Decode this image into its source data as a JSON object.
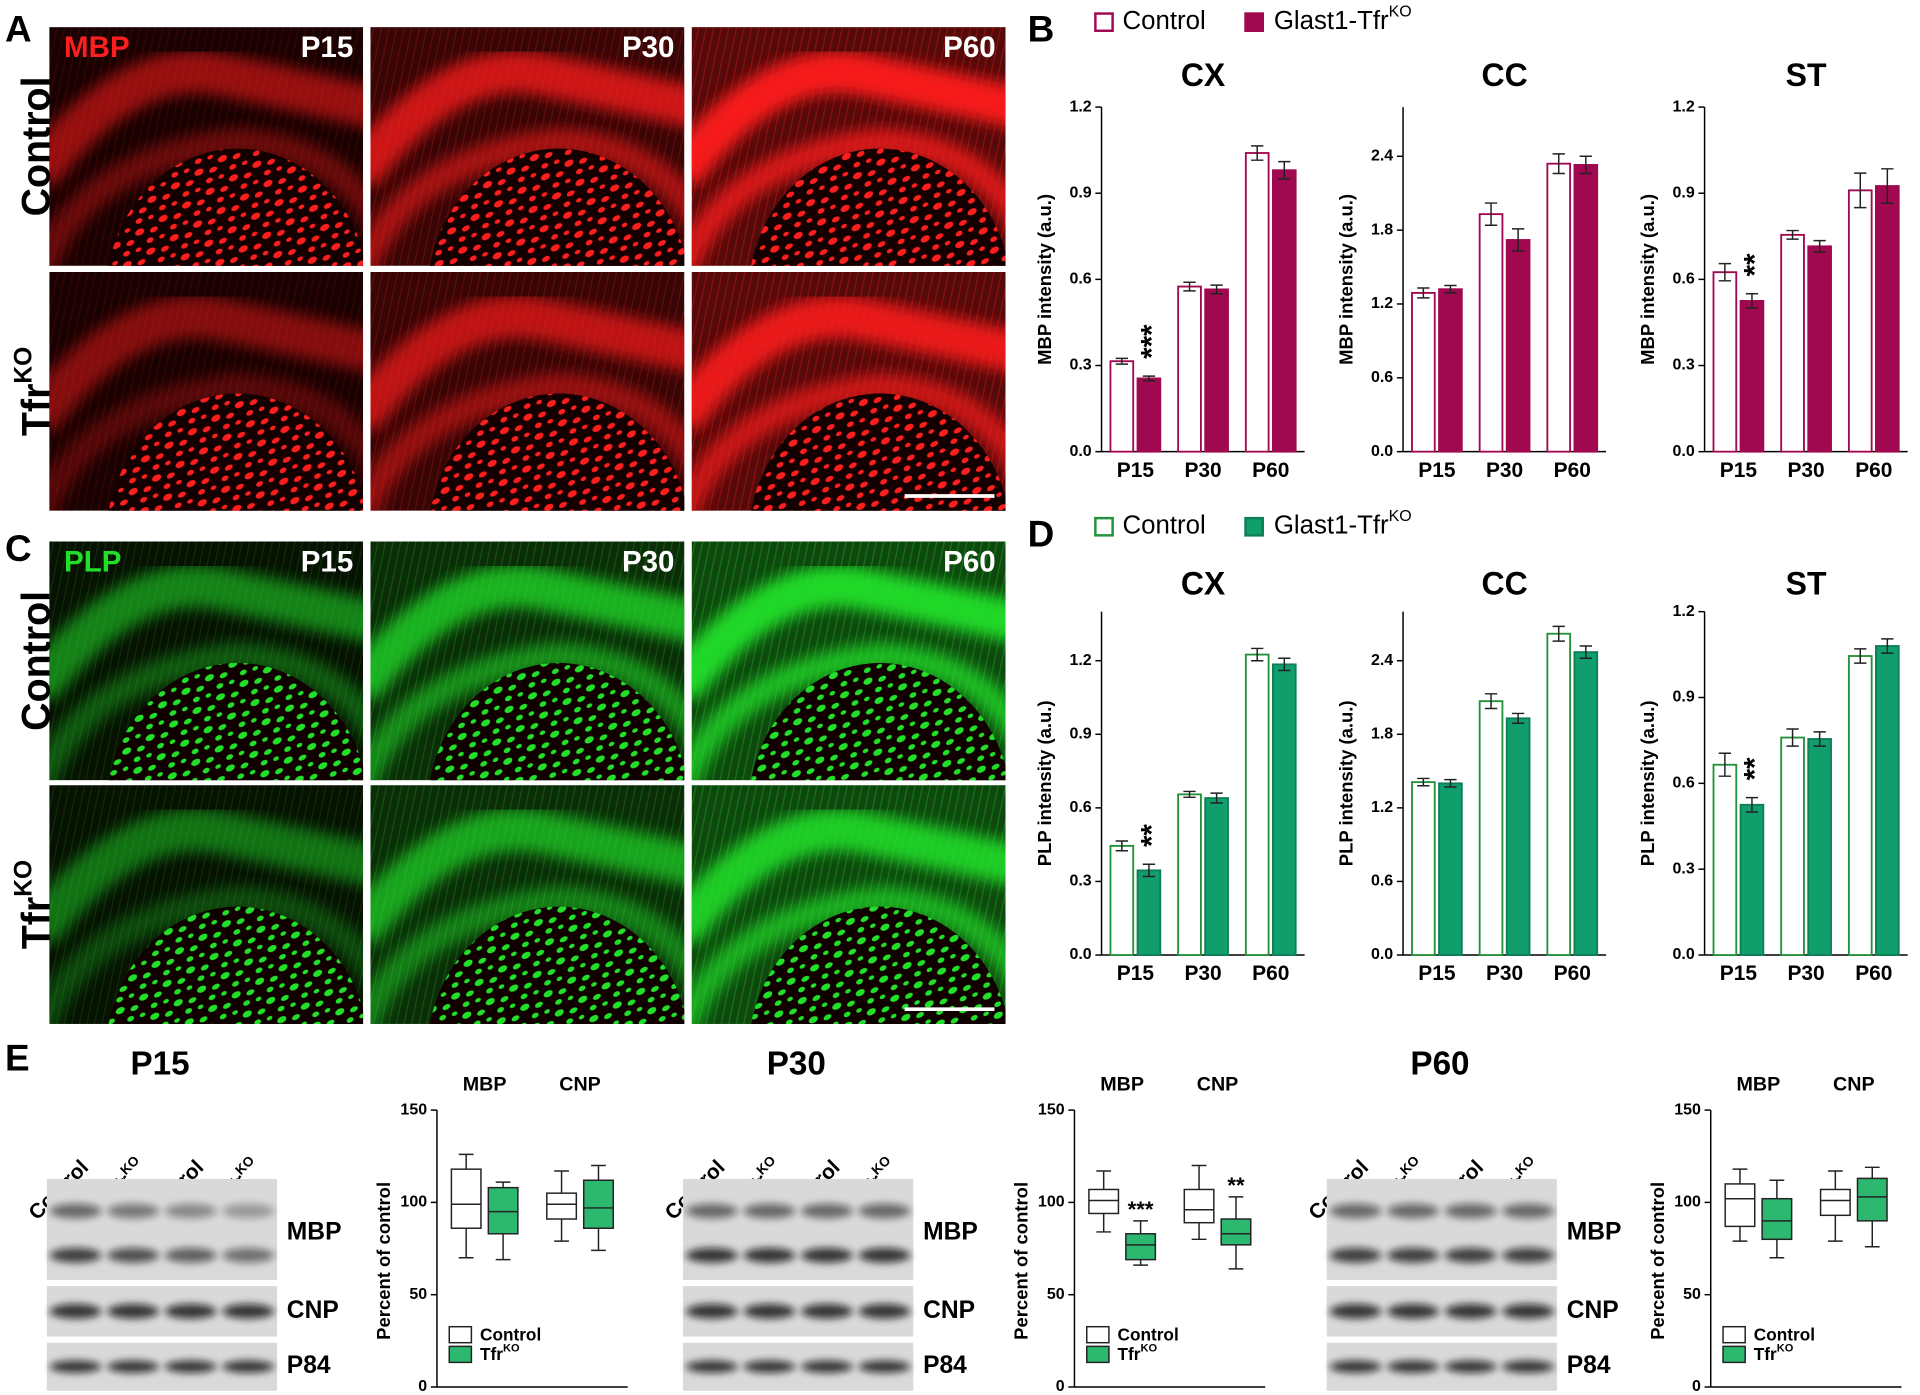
{
  "panel_labels": [
    "A",
    "B",
    "C",
    "D",
    "E"
  ],
  "micrographs": [
    {
      "stain": "MBP",
      "stain_color": "#ff1e1e",
      "ages": [
        "P15",
        "P30",
        "P60"
      ],
      "rows": [
        {
          "label": "Control"
        },
        {
          "label": "Tfr",
          "sup": "KO"
        }
      ]
    },
    {
      "stain": "PLP",
      "stain_color": "#22e02a",
      "ages": [
        "P15",
        "P30",
        "P60"
      ],
      "rows": [
        {
          "label": "Control"
        },
        {
          "label": "Tfr",
          "sup": "KO"
        }
      ]
    }
  ],
  "blots": [
    {
      "title": "P15",
      "lanes": [
        {
          "label": "Control"
        },
        {
          "label": "Tfr",
          "sup": "KO"
        },
        {
          "label": "Control"
        },
        {
          "label": "Tfr",
          "sup": "KO"
        }
      ],
      "bands": [
        "MBP",
        "CNP",
        "P84"
      ]
    },
    {
      "title": "P30",
      "lanes": [
        {
          "label": "Control"
        },
        {
          "label": "Tfr",
          "sup": "KO"
        },
        {
          "label": "Control"
        },
        {
          "label": "Tfr",
          "sup": "KO"
        }
      ],
      "bands": [
        "MBP",
        "CNP",
        "P84"
      ]
    },
    {
      "title": "P60",
      "lanes": [
        {
          "label": "Control"
        },
        {
          "label": "Tfr",
          "sup": "KO"
        },
        {
          "label": "Control"
        },
        {
          "label": "Tfr",
          "sup": "KO"
        }
      ],
      "bands": [
        "MBP",
        "CNP",
        "P84"
      ]
    }
  ],
  "chart_data": [
    {
      "type": "bar",
      "title": "CX",
      "ylabel": "MBP intensity (a.u.)",
      "categories": [
        "P15",
        "P30",
        "P60"
      ],
      "series": [
        {
          "name": "Control",
          "color": "#a0084f",
          "fill": "#ffffff",
          "values": [
            0.315,
            0.575,
            1.04
          ],
          "errors": [
            0.01,
            0.015,
            0.025
          ]
        },
        {
          "name": "Glast1-Tfr",
          "name_sup": "KO",
          "color": "#a0084f",
          "fill": "#a0084f",
          "values": [
            0.255,
            0.565,
            0.98
          ],
          "errors": [
            0.008,
            0.015,
            0.03
          ],
          "annotations": [
            "***",
            null,
            null
          ]
        }
      ],
      "ylim": [
        0,
        1.2
      ],
      "yticks": [
        {
          "value": 0,
          "label": "0.0"
        },
        {
          "value": 0.3,
          "label": "0.3"
        },
        {
          "value": 0.6,
          "label": "0.6"
        },
        {
          "value": 0.9,
          "label": "0.9"
        },
        {
          "value": 1.2,
          "label": "1.2"
        }
      ]
    },
    {
      "type": "bar",
      "title": "CC",
      "ylabel": "MBP intensity (a.u.)",
      "categories": [
        "P15",
        "P30",
        "P60"
      ],
      "series": [
        {
          "color": "#a0084f",
          "fill": "#ffffff",
          "values": [
            1.29,
            1.93,
            2.34
          ],
          "errors": [
            0.04,
            0.09,
            0.08
          ]
        },
        {
          "color": "#a0084f",
          "fill": "#a0084f",
          "values": [
            1.32,
            1.72,
            2.33
          ],
          "errors": [
            0.03,
            0.09,
            0.07
          ]
        }
      ],
      "ylim": [
        0,
        2.8
      ],
      "yticks": [
        {
          "value": 0,
          "label": "0.0"
        },
        {
          "value": 0.6,
          "label": "0.6"
        },
        {
          "value": 1.2,
          "label": "1.2"
        },
        {
          "value": 1.8,
          "label": "1.8"
        },
        {
          "value": 2.4,
          "label": "2.4"
        }
      ]
    },
    {
      "type": "bar",
      "title": "ST",
      "ylabel": "MBP intensity (a.u.)",
      "categories": [
        "P15",
        "P30",
        "P60"
      ],
      "series": [
        {
          "color": "#a0084f",
          "fill": "#ffffff",
          "values": [
            0.625,
            0.755,
            0.91
          ],
          "errors": [
            0.03,
            0.015,
            0.06
          ]
        },
        {
          "color": "#a0084f",
          "fill": "#a0084f",
          "values": [
            0.525,
            0.715,
            0.925
          ],
          "errors": [
            0.025,
            0.02,
            0.06
          ],
          "annotations": [
            "**",
            null,
            null
          ]
        }
      ],
      "ylim": [
        0,
        1.2
      ],
      "yticks": [
        {
          "value": 0,
          "label": "0.0"
        },
        {
          "value": 0.3,
          "label": "0.3"
        },
        {
          "value": 0.6,
          "label": "0.6"
        },
        {
          "value": 0.9,
          "label": "0.9"
        },
        {
          "value": 1.2,
          "label": "1.2"
        }
      ]
    },
    {
      "type": "bar",
      "title": "CX",
      "ylabel": "PLP intensity (a.u.)",
      "categories": [
        "P15",
        "P30",
        "P60"
      ],
      "series": [
        {
          "name": "Control",
          "color": "#23913a",
          "fill": "#ffffff",
          "values": [
            0.445,
            0.655,
            1.225
          ],
          "errors": [
            0.02,
            0.012,
            0.025
          ]
        },
        {
          "name": "Glast1-Tfr",
          "name_sup": "KO",
          "color": "#0e7e55",
          "fill": "#109e6c",
          "values": [
            0.345,
            0.64,
            1.185
          ],
          "errors": [
            0.025,
            0.02,
            0.025
          ],
          "annotations": [
            "**",
            null,
            null
          ]
        }
      ],
      "ylim": [
        0,
        1.4
      ],
      "yticks": [
        {
          "value": 0,
          "label": "0.0"
        },
        {
          "value": 0.3,
          "label": "0.3"
        },
        {
          "value": 0.6,
          "label": "0.6"
        },
        {
          "value": 0.9,
          "label": "0.9"
        },
        {
          "value": 1.2,
          "label": "1.2"
        }
      ]
    },
    {
      "type": "bar",
      "title": "CC",
      "ylabel": "PLP intensity (a.u.)",
      "categories": [
        "P15",
        "P30",
        "P60"
      ],
      "series": [
        {
          "color": "#23913a",
          "fill": "#ffffff",
          "values": [
            1.41,
            2.07,
            2.62
          ],
          "errors": [
            0.03,
            0.06,
            0.06
          ]
        },
        {
          "color": "#0e7e55",
          "fill": "#109e6c",
          "values": [
            1.4,
            1.93,
            2.47
          ],
          "errors": [
            0.03,
            0.04,
            0.05
          ]
        }
      ],
      "ylim": [
        0,
        2.8
      ],
      "yticks": [
        {
          "value": 0,
          "label": "0.0"
        },
        {
          "value": 0.6,
          "label": "0.6"
        },
        {
          "value": 1.2,
          "label": "1.2"
        },
        {
          "value": 1.8,
          "label": "1.8"
        },
        {
          "value": 2.4,
          "label": "2.4"
        }
      ]
    },
    {
      "type": "bar",
      "title": "ST",
      "ylabel": "PLP intensity (a.u.)",
      "categories": [
        "P15",
        "P30",
        "P60"
      ],
      "series": [
        {
          "color": "#23913a",
          "fill": "#ffffff",
          "values": [
            0.665,
            0.76,
            1.045
          ],
          "errors": [
            0.04,
            0.03,
            0.025
          ]
        },
        {
          "color": "#0e7e55",
          "fill": "#109e6c",
          "values": [
            0.525,
            0.755,
            1.08
          ],
          "errors": [
            0.025,
            0.025,
            0.025
          ],
          "annotations": [
            "**",
            null,
            null
          ]
        }
      ],
      "ylim": [
        0,
        1.2
      ],
      "yticks": [
        {
          "value": 0,
          "label": "0.0"
        },
        {
          "value": 0.3,
          "label": "0.3"
        },
        {
          "value": 0.6,
          "label": "0.6"
        },
        {
          "value": 0.9,
          "label": "0.9"
        },
        {
          "value": 1.2,
          "label": "1.2"
        }
      ]
    },
    {
      "type": "box",
      "ylabel": "Percent of control",
      "categories": [
        "MBP",
        "CNP"
      ],
      "series": [
        {
          "name": "Control",
          "fill": "#ffffff",
          "boxes": [
            {
              "min": 70,
              "q1": 86,
              "median": 99,
              "q3": 118,
              "max": 126
            },
            {
              "min": 79,
              "q1": 91,
              "median": 99,
              "q3": 105,
              "max": 117
            }
          ]
        },
        {
          "name": "Tfr",
          "name_sup": "KO",
          "fill": "#2db86f",
          "boxes": [
            {
              "min": 69,
              "q1": 83,
              "median": 95,
              "q3": 108,
              "max": 111
            },
            {
              "min": 74,
              "q1": 86,
              "median": 97,
              "q3": 112,
              "max": 120
            }
          ]
        }
      ],
      "ylim": [
        0,
        150
      ],
      "yticks": [
        0,
        50,
        100,
        150
      ]
    },
    {
      "type": "box",
      "ylabel": "Percent of control",
      "categories": [
        "MBP",
        "CNP"
      ],
      "series": [
        {
          "name": "Control",
          "fill": "#ffffff",
          "boxes": [
            {
              "min": 84,
              "q1": 94,
              "median": 101,
              "q3": 107,
              "max": 117
            },
            {
              "min": 80,
              "q1": 89,
              "median": 96,
              "q3": 107,
              "max": 120
            }
          ]
        },
        {
          "name": "Tfr",
          "name_sup": "KO",
          "fill": "#2db86f",
          "boxes": [
            {
              "min": 66,
              "q1": 69,
              "median": 77,
              "q3": 83,
              "max": 90
            },
            {
              "min": 64,
              "q1": 77,
              "median": 83,
              "q3": 91,
              "max": 103
            }
          ],
          "annotations": [
            "***",
            "**"
          ]
        }
      ],
      "ylim": [
        0,
        150
      ],
      "yticks": [
        0,
        50,
        100,
        150
      ]
    },
    {
      "type": "box",
      "ylabel": "Percent of control",
      "categories": [
        "MBP",
        "CNP"
      ],
      "series": [
        {
          "name": "Control",
          "fill": "#ffffff",
          "boxes": [
            {
              "min": 79,
              "q1": 87,
              "median": 102,
              "q3": 110,
              "max": 118
            },
            {
              "min": 79,
              "q1": 93,
              "median": 101,
              "q3": 107,
              "max": 117
            }
          ]
        },
        {
          "name": "Tfr",
          "name_sup": "KO",
          "fill": "#2db86f",
          "boxes": [
            {
              "min": 70,
              "q1": 80,
              "median": 90,
              "q3": 102,
              "max": 112
            },
            {
              "min": 76,
              "q1": 90,
              "median": 103,
              "q3": 113,
              "max": 119
            }
          ]
        }
      ],
      "ylim": [
        0,
        150
      ],
      "yticks": [
        0,
        50,
        100,
        150
      ]
    }
  ]
}
